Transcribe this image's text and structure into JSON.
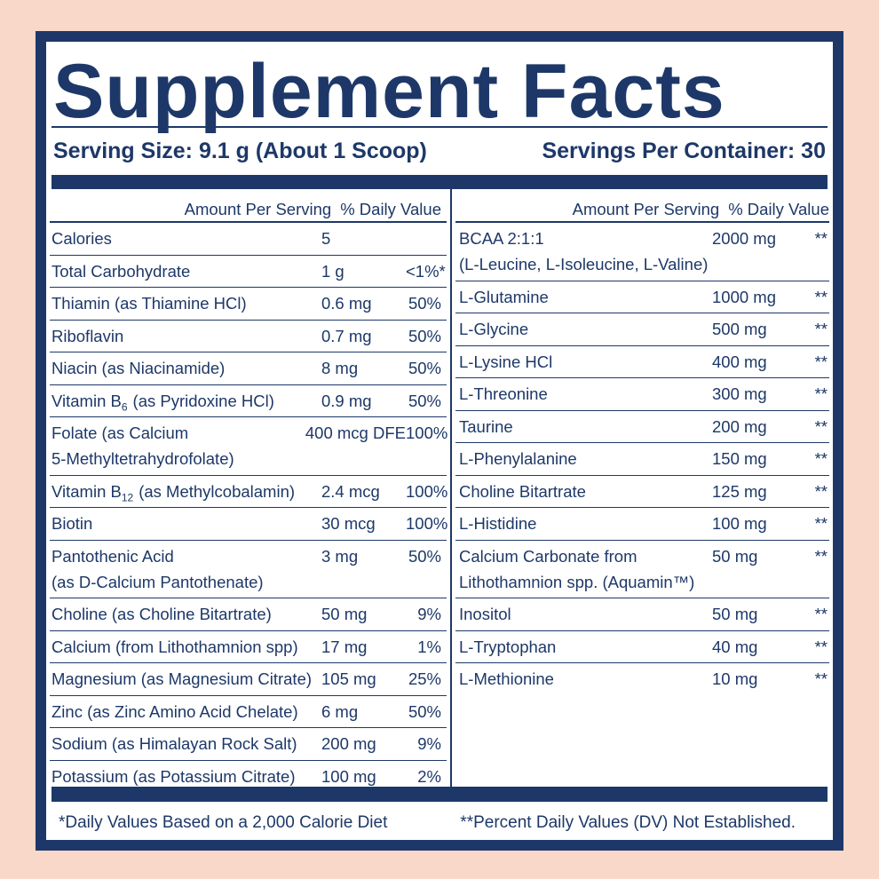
{
  "title": "Supplement Facts",
  "serving_size": "Serving Size: 9.1 g (About 1 Scoop)",
  "servings_per_container": "Servings Per Container: 30",
  "left": {
    "header": {
      "amount": "Amount Per Serving",
      "dv": "% Daily Value"
    },
    "rows": [
      {
        "name": [
          "Calories"
        ],
        "amount": "5"
      },
      {
        "name": [
          "Total Carbohydrate"
        ],
        "amount": "1 g",
        "dv": "<1%*"
      },
      {
        "name": [
          "Thiamin (as Thiamine HCl)"
        ],
        "amount": "0.6 mg",
        "dv": "50%"
      },
      {
        "name": [
          "Riboflavin"
        ],
        "amount": "0.7 mg",
        "dv": "50%"
      },
      {
        "name": [
          "Niacin (as Niacinamide)"
        ],
        "amount": "8 mg",
        "dv": "50%"
      },
      {
        "name_parts": [
          "Vitamin B",
          "6",
          "(as Pyridoxine HCl)"
        ],
        "amount": "0.9 mg",
        "dv": "50%"
      },
      {
        "name": [
          "Folate (as Calcium",
          "5-Methyltetrahydrofolate)"
        ],
        "amount": "400 mcg DFE",
        "dv": "100%"
      },
      {
        "name_parts": [
          "Vitamin B",
          "12",
          "(as Methylcobalamin)"
        ],
        "amount": "2.4 mcg",
        "dv": "100%"
      },
      {
        "name": [
          "Biotin"
        ],
        "amount": "30 mcg",
        "dv": "100%"
      },
      {
        "name": [
          "Pantothenic Acid",
          "(as D-Calcium Pantothenate)"
        ],
        "amount": "3 mg",
        "dv": "50%"
      },
      {
        "name": [
          "Choline (as Choline Bitartrate)"
        ],
        "amount": "50 mg",
        "dv": "9%"
      },
      {
        "name": [
          "Calcium (from Lithothamnion spp)"
        ],
        "amount": "17 mg",
        "dv": "1%"
      },
      {
        "name": [
          "Magnesium (as Magnesium Citrate)"
        ],
        "amount": "105 mg",
        "dv": "25%"
      },
      {
        "name": [
          "Zinc (as Zinc Amino Acid Chelate)"
        ],
        "amount": "6 mg",
        "dv": "50%"
      },
      {
        "name": [
          "Sodium (as Himalayan Rock Salt)"
        ],
        "amount": "200 mg",
        "dv": "9%"
      },
      {
        "name": [
          "Potassium (as Potassium Citrate)"
        ],
        "amount": "100 mg",
        "dv": "2%"
      }
    ]
  },
  "right": {
    "header": {
      "amount": "Amount Per Serving",
      "dv": "% Daily Value"
    },
    "rows": [
      {
        "name": [
          "BCAA 2:1:1",
          "(L-Leucine, L-Isoleucine, L-Valine)"
        ],
        "amount": "2000 mg",
        "dv": "**"
      },
      {
        "name": [
          "L-Glutamine"
        ],
        "amount": "1000 mg",
        "dv": "**"
      },
      {
        "name": [
          "L-Glycine"
        ],
        "amount": "500 mg",
        "dv": "**"
      },
      {
        "name": [
          "L-Lysine HCl"
        ],
        "amount": "400 mg",
        "dv": "**"
      },
      {
        "name": [
          "L-Threonine"
        ],
        "amount": "300 mg",
        "dv": "**"
      },
      {
        "name": [
          "Taurine"
        ],
        "amount": "200 mg",
        "dv": "**"
      },
      {
        "name": [
          "L-Phenylalanine"
        ],
        "amount": "150 mg",
        "dv": "**"
      },
      {
        "name": [
          "Choline Bitartrate"
        ],
        "amount": "125 mg",
        "dv": "**"
      },
      {
        "name": [
          "L-Histidine"
        ],
        "amount": "100 mg",
        "dv": "**"
      },
      {
        "name": [
          "Calcium Carbonate from",
          "Lithothamnion spp. (Aquamin™)"
        ],
        "amount": "50 mg",
        "dv": "**"
      },
      {
        "name": [
          "Inositol"
        ],
        "amount": "50 mg",
        "dv": "**"
      },
      {
        "name": [
          "L-Tryptophan"
        ],
        "amount": "40 mg",
        "dv": "**"
      },
      {
        "name": [
          "L-Methionine"
        ],
        "amount": "10 mg",
        "dv": "**"
      }
    ]
  },
  "footer": {
    "left": "*Daily Values Based on a 2,000 Calorie Diet",
    "right": "**Percent Daily Values (DV) Not Established."
  }
}
